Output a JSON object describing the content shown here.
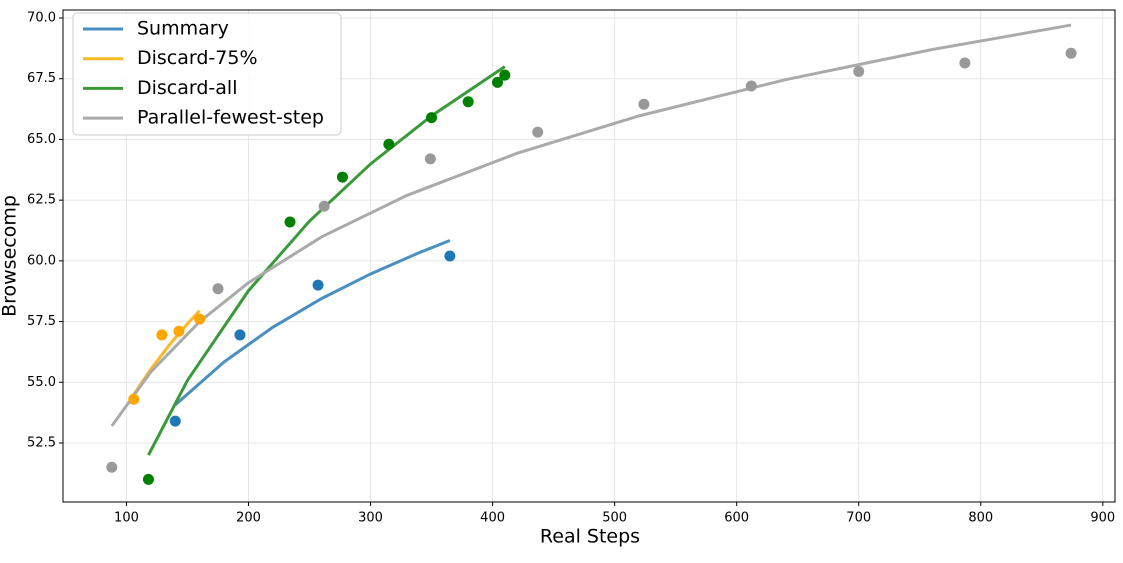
{
  "chart_data": {
    "type": "scatter-fit",
    "x_label": "Real Steps",
    "y_label": "Browsecomp",
    "xlim": [
      48,
      910
    ],
    "ylim": [
      50.07,
      70.33
    ],
    "xticks": [
      100,
      200,
      300,
      400,
      500,
      600,
      700,
      800,
      900
    ],
    "yticks": [
      {
        "value": 52.5,
        "label": "52.5"
      },
      {
        "value": 55,
        "label": "55.0"
      },
      {
        "value": 57.5,
        "label": "57.5"
      },
      {
        "value": 60,
        "label": "60.0"
      },
      {
        "value": 62.5,
        "label": "62.5"
      },
      {
        "value": 65,
        "label": "65.0"
      },
      {
        "value": 67.5,
        "label": "67.5"
      },
      {
        "value": 70,
        "label": "70.0"
      }
    ],
    "grid": true,
    "legend": "upper-left",
    "series": [
      {
        "name": "Summary",
        "color": "#4a8fc0",
        "marker_color": "#1f77b4",
        "x": [
          140,
          193,
          257,
          365
        ],
        "values": [
          53.4,
          56.95,
          59.0,
          60.2
        ],
        "fit_x": [
          140,
          180,
          220,
          260,
          300,
          340,
          365
        ],
        "fit_values": [
          54.07,
          55.84,
          57.27,
          58.45,
          59.46,
          60.34,
          60.84
        ]
      },
      {
        "name": "Discard-75%",
        "color": "#fbb829",
        "marker_color": "#ffa500",
        "x": [
          106,
          129,
          143,
          160
        ],
        "values": [
          54.3,
          56.95,
          57.1,
          57.6
        ],
        "fit_x": [
          106,
          120,
          135,
          150,
          160
        ],
        "fit_values": [
          54.5,
          55.54,
          56.53,
          57.41,
          57.95
        ]
      },
      {
        "name": "Discard-all",
        "color": "#3a9a3a",
        "marker_color": "#008000",
        "x": [
          118,
          234,
          277,
          315,
          350,
          380,
          404,
          410
        ],
        "values": [
          51.0,
          61.6,
          63.45,
          64.8,
          65.9,
          66.55,
          67.35,
          67.65
        ],
        "fit_x": [
          118,
          150,
          200,
          250,
          300,
          350,
          410
        ],
        "fit_values": [
          52.0,
          55.08,
          58.77,
          61.64,
          63.99,
          65.97,
          68.0
        ]
      },
      {
        "name": "Parallel-fewest-step",
        "color": "#aaaaaa",
        "marker_color": "#999999",
        "x": [
          88,
          175,
          262,
          349,
          437,
          524,
          612,
          700,
          787,
          874
        ],
        "values": [
          51.5,
          58.85,
          62.25,
          64.2,
          65.3,
          66.45,
          67.2,
          67.8,
          68.15,
          68.55
        ],
        "fit_x": [
          88,
          120,
          160,
          200,
          260,
          330,
          420,
          520,
          640,
          760,
          874
        ],
        "fit_values": [
          53.2,
          55.43,
          57.5,
          59.1,
          60.99,
          62.7,
          64.43,
          65.97,
          67.46,
          68.7,
          69.71
        ]
      }
    ]
  }
}
